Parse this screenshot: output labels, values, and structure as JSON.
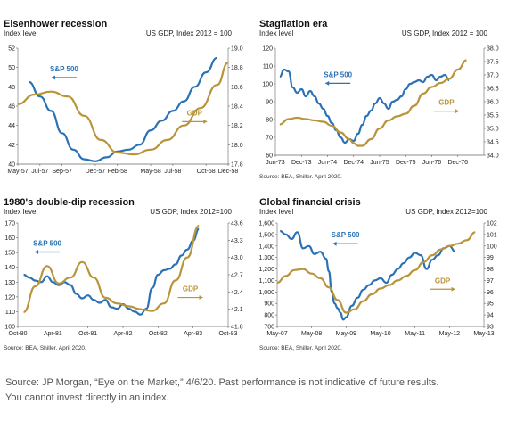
{
  "colors": {
    "sp500": "#2a72b5",
    "gdp": "#b8943a",
    "axis": "#666666",
    "grid": "#e6e6e6"
  },
  "footer": {
    "line1": "Source: JP Morgan, “Eye on the Market,” 4/6/20. Past performance is not indicative of future results.",
    "line2": "You cannot invest directly in an index."
  },
  "chart_data": [
    {
      "type": "line",
      "title": "Eisenhower recession",
      "left_axis_label": "Index level",
      "right_axis_label": "US GDP, Index 2012 = 100",
      "source": "",
      "left_ylim": [
        40,
        52
      ],
      "left_ticks": [
        "40",
        "42",
        "44",
        "46",
        "48",
        "50",
        "52"
      ],
      "right_ylim": [
        17.8,
        19.0
      ],
      "right_ticks": [
        "17.8",
        "18.0",
        "18.2",
        "18.4",
        "18.6",
        "18.8",
        "19.0"
      ],
      "xlim": [
        0,
        19
      ],
      "x_ticks": [
        {
          "x": 0,
          "label": "May-57"
        },
        {
          "x": 2,
          "label": "Jul-57"
        },
        {
          "x": 4,
          "label": "Sep-57"
        },
        {
          "x": 7,
          "label": "Dec-57"
        },
        {
          "x": 9,
          "label": "Feb-58"
        },
        {
          "x": 12,
          "label": "May-58"
        },
        {
          "x": 14,
          "label": "Jul-58"
        },
        {
          "x": 17,
          "label": "Oct-58"
        },
        {
          "x": 19,
          "label": "Dec-58"
        }
      ],
      "series": [
        {
          "name": "S&P 500",
          "axis": "left",
          "x": [
            1,
            2,
            3,
            4,
            5,
            6,
            7,
            8,
            9,
            10,
            11,
            12,
            13,
            14,
            15,
            16,
            17,
            18
          ],
          "values": [
            48.5,
            47.0,
            45.5,
            43.2,
            41.5,
            40.5,
            40.3,
            40.7,
            41.3,
            41.5,
            42.0,
            43.5,
            44.5,
            45.5,
            46.5,
            48.0,
            49.5,
            51.0
          ]
        },
        {
          "name": "GDP",
          "axis": "right",
          "x": [
            0,
            1.5,
            3,
            4.5,
            6,
            7.5,
            9,
            10.5,
            12,
            13.5,
            15,
            16.5,
            18,
            19
          ],
          "values": [
            18.42,
            18.52,
            18.55,
            18.5,
            18.3,
            18.05,
            17.92,
            17.9,
            17.95,
            18.05,
            18.2,
            18.38,
            18.62,
            18.85
          ]
        }
      ],
      "annotations": [
        {
          "text": "S&P 500",
          "series": "S&P 500"
        },
        {
          "text": "GDP",
          "series": "GDP"
        }
      ]
    },
    {
      "type": "line",
      "title": "Stagflation era",
      "left_axis_label": "Index level",
      "right_axis_label": "US GDP, Index 2012 = 100",
      "source": "Source: BEA, Shiller. April 2020.",
      "left_ylim": [
        60,
        120
      ],
      "left_ticks": [
        "60",
        "70",
        "80",
        "90",
        "100",
        "110",
        "120"
      ],
      "right_ylim": [
        34.0,
        38.0
      ],
      "right_ticks": [
        "34.0",
        "34.5",
        "35.0",
        "35.5",
        "36.0",
        "36.5",
        "37.0",
        "37.5",
        "38.0"
      ],
      "xlim": [
        0,
        48
      ],
      "x_ticks": [
        {
          "x": 0,
          "label": "Jun-73"
        },
        {
          "x": 6,
          "label": "Dec-73"
        },
        {
          "x": 12,
          "label": "Jun-74"
        },
        {
          "x": 18,
          "label": "Dec-74"
        },
        {
          "x": 24,
          "label": "Jun-75"
        },
        {
          "x": 30,
          "label": "Dec-75"
        },
        {
          "x": 36,
          "label": "Jun-76"
        },
        {
          "x": 42,
          "label": "Dec-76"
        }
      ],
      "series": [
        {
          "name": "S&P 500",
          "axis": "left",
          "x": [
            1,
            2,
            3,
            4,
            5,
            6,
            7,
            8,
            9,
            10,
            11,
            12,
            13,
            14,
            15,
            16,
            17,
            18,
            19,
            20,
            21,
            22,
            23,
            24,
            25,
            26,
            27,
            28,
            29,
            30,
            31,
            32,
            33,
            34,
            35,
            36,
            37,
            38,
            39,
            40
          ],
          "values": [
            104,
            108,
            107,
            98,
            95,
            97,
            93,
            96,
            93,
            89,
            86,
            82,
            78,
            74,
            70,
            67,
            69,
            68,
            72,
            77,
            82,
            85,
            89,
            92,
            89,
            86,
            90,
            91,
            93,
            97,
            100,
            101,
            102,
            101,
            104,
            105,
            102,
            104,
            105,
            102
          ]
        },
        {
          "name": "GDP",
          "axis": "right",
          "x": [
            1,
            3,
            5,
            7,
            9,
            11,
            13,
            15,
            17,
            18,
            19,
            20,
            22,
            24,
            26,
            28,
            30,
            32,
            34,
            36,
            38,
            40,
            42,
            44
          ],
          "values": [
            35.15,
            35.35,
            35.4,
            35.35,
            35.3,
            35.25,
            35.1,
            34.85,
            34.6,
            34.45,
            34.35,
            34.35,
            34.6,
            35.0,
            35.3,
            35.45,
            35.55,
            35.85,
            36.3,
            36.55,
            36.7,
            36.85,
            37.2,
            37.55
          ]
        }
      ],
      "annotations": [
        {
          "text": "S&P 500",
          "series": "S&P 500"
        },
        {
          "text": "GDP",
          "series": "GDP"
        }
      ]
    },
    {
      "type": "line",
      "title": "1980's double-dip recession",
      "left_axis_label": "Index level",
      "right_axis_label": "US GDP, Index 2012=100",
      "source": "Source: BEA, Shiller. April 2020.",
      "left_ylim": [
        100,
        170
      ],
      "left_ticks": [
        "100",
        "110",
        "120",
        "130",
        "140",
        "150",
        "160",
        "170"
      ],
      "right_ylim": [
        41.8,
        43.6
      ],
      "right_ticks": [
        "41.8",
        "42.1",
        "42.4",
        "42.7",
        "43.0",
        "43.3",
        "43.6"
      ],
      "xlim": [
        0,
        36
      ],
      "x_ticks": [
        {
          "x": 0,
          "label": "Oct-80"
        },
        {
          "x": 6,
          "label": "Apr-81"
        },
        {
          "x": 12,
          "label": "Oct-81"
        },
        {
          "x": 18,
          "label": "Apr-82"
        },
        {
          "x": 24,
          "label": "Oct-82"
        },
        {
          "x": 30,
          "label": "Apr-83"
        },
        {
          "x": 36,
          "label": "Oct-83"
        }
      ],
      "series": [
        {
          "name": "S&P 500",
          "axis": "left",
          "x": [
            1,
            2,
            3,
            4,
            5,
            6,
            7,
            8,
            9,
            10,
            11,
            12,
            13,
            14,
            15,
            16,
            17,
            18,
            19,
            20,
            21,
            22,
            23,
            24,
            25,
            26,
            27,
            28,
            29,
            30,
            31
          ],
          "values": [
            135,
            133,
            131,
            130,
            134,
            130,
            128,
            130,
            128,
            122,
            119,
            121,
            118,
            116,
            118,
            113,
            112,
            115,
            112,
            110,
            108,
            112,
            126,
            135,
            138,
            139,
            142,
            148,
            152,
            158,
            166
          ]
        },
        {
          "name": "GDP",
          "axis": "right",
          "x": [
            1,
            3,
            5,
            7,
            9,
            11,
            13,
            15,
            17,
            19,
            21,
            23,
            25,
            27,
            29,
            31
          ],
          "values": [
            42.05,
            42.5,
            42.85,
            42.55,
            42.65,
            42.92,
            42.65,
            42.3,
            42.2,
            42.15,
            42.1,
            42.07,
            42.2,
            42.6,
            43.0,
            43.55
          ]
        }
      ],
      "annotations": [
        {
          "text": "S&P 500",
          "series": "S&P 500"
        },
        {
          "text": "GDP",
          "series": "GDP"
        }
      ]
    },
    {
      "type": "line",
      "title": "Global financial crisis",
      "left_axis_label": "Index level",
      "right_axis_label": "US GDP, Index 2012=100",
      "source": "Source: BEA, Shiller. April 2020.",
      "left_ylim": [
        700,
        1600
      ],
      "left_ticks": [
        "700",
        "800",
        "900",
        "1,000",
        "1,100",
        "1,200",
        "1,300",
        "1,400",
        "1,500",
        "1,600"
      ],
      "right_ylim": [
        93,
        102
      ],
      "right_ticks": [
        "93",
        "94",
        "95",
        "96",
        "97",
        "98",
        "99",
        "100",
        "101",
        "102"
      ],
      "xlim": [
        0,
        72
      ],
      "x_ticks": [
        {
          "x": 0,
          "label": "May-07"
        },
        {
          "x": 12,
          "label": "May-08"
        },
        {
          "x": 24,
          "label": "May-09"
        },
        {
          "x": 36,
          "label": "May-10"
        },
        {
          "x": 48,
          "label": "May-11"
        },
        {
          "x": 60,
          "label": "May-12"
        },
        {
          "x": 72,
          "label": "May-13"
        }
      ],
      "series": [
        {
          "name": "S&P 500",
          "axis": "left",
          "x": [
            1,
            3,
            5,
            7,
            9,
            11,
            13,
            15,
            17,
            18,
            19,
            20,
            21,
            22,
            23,
            24,
            26,
            28,
            30,
            32,
            34,
            36,
            38,
            40,
            42,
            44,
            46,
            48,
            50,
            52,
            54,
            56,
            58,
            60,
            62
          ],
          "values": [
            1530,
            1500,
            1460,
            1520,
            1380,
            1400,
            1330,
            1350,
            1290,
            1180,
            1000,
            900,
            860,
            820,
            760,
            780,
            880,
            950,
            1020,
            1060,
            1100,
            1120,
            1080,
            1150,
            1200,
            1250,
            1300,
            1340,
            1320,
            1200,
            1280,
            1320,
            1380,
            1400,
            1350
          ]
        },
        {
          "name": "GDP",
          "axis": "right",
          "x": [
            0,
            3,
            6,
            9,
            12,
            15,
            18,
            21,
            24,
            27,
            30,
            33,
            36,
            39,
            42,
            45,
            48,
            51,
            54,
            57,
            60,
            63,
            66,
            69
          ],
          "values": [
            96.8,
            97.4,
            97.9,
            98.0,
            97.6,
            97.2,
            96.4,
            95.3,
            94.2,
            94.5,
            95.2,
            95.8,
            96.3,
            96.6,
            97.0,
            97.4,
            97.9,
            98.6,
            99.2,
            99.7,
            100.0,
            100.2,
            100.5,
            101.2
          ]
        }
      ],
      "annotations": [
        {
          "text": "S&P 500",
          "series": "S&P 500"
        },
        {
          "text": "GDP",
          "series": "GDP"
        }
      ]
    }
  ]
}
